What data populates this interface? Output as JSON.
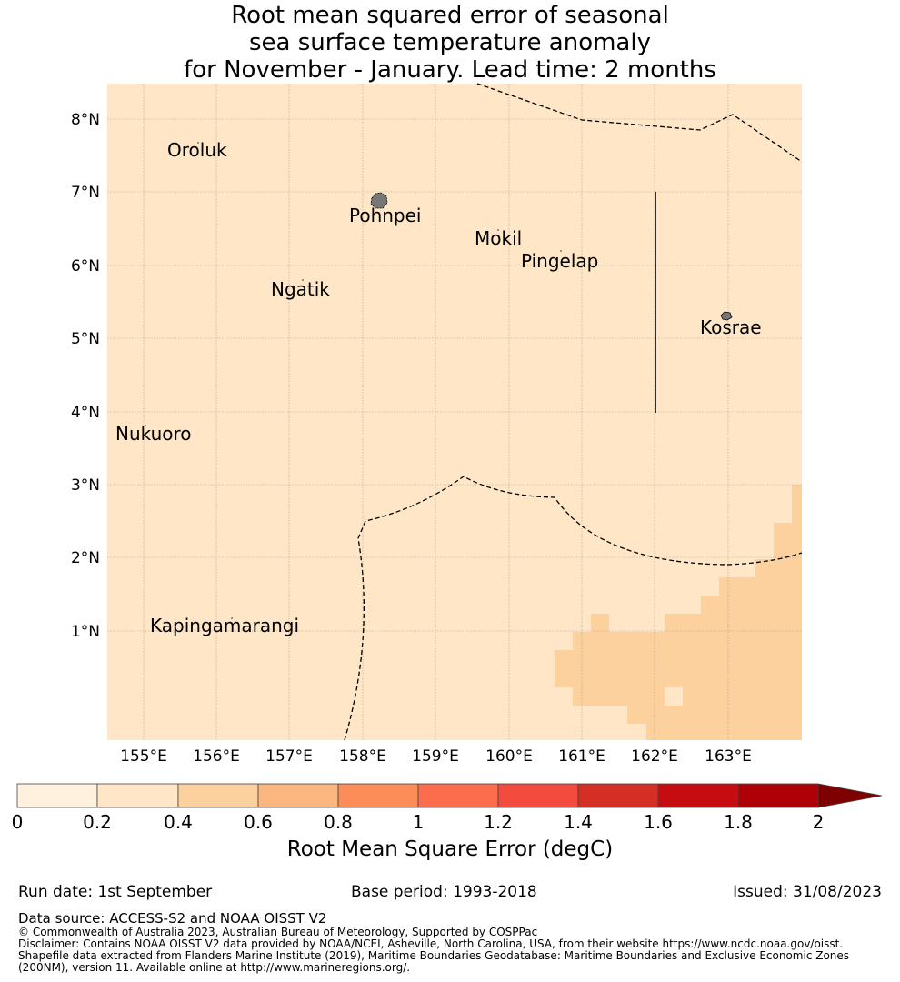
{
  "title_lines": [
    "Root mean squared error of seasonal",
    "sea surface temperature anomaly",
    "for November - January. Lead time: 2 months"
  ],
  "map": {
    "lat_ticks": [
      "8°N",
      "7°N",
      "6°N",
      "5°N",
      "4°N",
      "3°N",
      "2°N",
      "1°N"
    ],
    "lon_ticks": [
      "155°E",
      "156°E",
      "157°E",
      "158°E",
      "159°E",
      "160°E",
      "161°E",
      "162°E",
      "163°E"
    ],
    "island_labels": [
      "Oroluk",
      "Pohnpei",
      "Mokil",
      "Pingelap",
      "Ngatik",
      "Kosrae",
      "Nukuoro",
      "Kapingamarangi"
    ],
    "colors": {
      "low": "#fee6c7",
      "mid": "#fdd19d"
    }
  },
  "colorbar": {
    "tick_labels": [
      "0",
      "0.2",
      "0.4",
      "0.6",
      "0.8",
      "1",
      "1.2",
      "1.4",
      "1.6",
      "1.8",
      "2"
    ],
    "colors": [
      "#fff1de",
      "#fee6c7",
      "#fdd19d",
      "#fcb67f",
      "#fc8d59",
      "#fb6d4d",
      "#f34b3d",
      "#d52e24",
      "#c60c10",
      "#ae0006",
      "#7f0000"
    ],
    "label": "Root Mean Square Error (degC)"
  },
  "footer": {
    "run_date": "Run date: 1st September",
    "base_period": "Base period: 1993-2018",
    "issued": "Issued: 31/08/2023",
    "data_source": "Data source: ACCESS-S2 and NOAA OISST V2",
    "copyright": "© Commonwealth of Australia 2023, Australian Bureau of Meteorology, Supported by COSPPac",
    "disclaimer_1": "Disclaimer: Contains NOAA OISST V2 data provided by NOAA/NCEI, Asheville, North Carolina, USA, from their website https://www.ncdc.noaa.gov/oisst.",
    "disclaimer_2": "Shapefile data extracted from Flanders Marine Institute (2019), Maritime Boundaries Geodatabase: Maritime Boundaries and Exclusive Economic Zones",
    "disclaimer_3": "(200NM), version 11. Available online at http://www.marineregions.org/."
  }
}
